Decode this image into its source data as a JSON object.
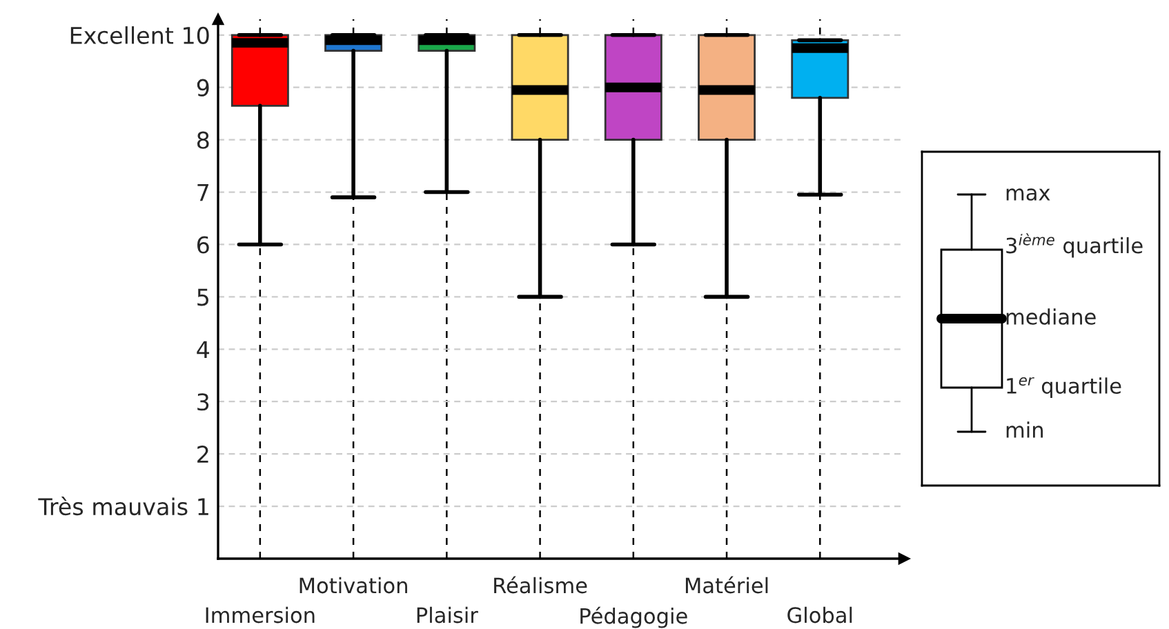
{
  "chart_data": {
    "type": "box",
    "categories": [
      "Immersion",
      "Motivation",
      "Plaisir",
      "Réalisme",
      "Pédagogie",
      "Matériel",
      "Global"
    ],
    "colors": [
      "#ff0000",
      "#1f77d0",
      "#1aa84a",
      "#ffd966",
      "#bf45c4",
      "#f4b183",
      "#00b0f0"
    ],
    "boxes": [
      {
        "low": 6,
        "q1": 8.65,
        "median": 9.85,
        "q3": 10,
        "high": 10
      },
      {
        "low": 6.9,
        "q1": 9.7,
        "median": 9.9,
        "q3": 10,
        "high": 10
      },
      {
        "low": 7,
        "q1": 9.7,
        "median": 9.9,
        "q3": 10,
        "high": 10
      },
      {
        "low": 5,
        "q1": 8,
        "median": 8.95,
        "q3": 10,
        "high": 10
      },
      {
        "low": 6,
        "q1": 8,
        "median": 9,
        "q3": 10,
        "high": 10
      },
      {
        "low": 5,
        "q1": 8,
        "median": 8.95,
        "q3": 10,
        "high": 10
      },
      {
        "low": 6.95,
        "q1": 8.8,
        "median": 9.75,
        "q3": 9.9,
        "high": 9.9
      }
    ],
    "ylim": [
      0,
      10.3
    ],
    "yticks": [
      {
        "value": 1,
        "label": "Très mauvais 1"
      },
      2,
      3,
      4,
      5,
      6,
      7,
      8,
      9,
      {
        "value": 10,
        "label": "Excellent 10"
      }
    ],
    "grid": true,
    "annotations": [
      "max",
      "3$^{ième}$ quartile",
      "mediane",
      "1$^{er}$ quartile",
      "min"
    ]
  }
}
